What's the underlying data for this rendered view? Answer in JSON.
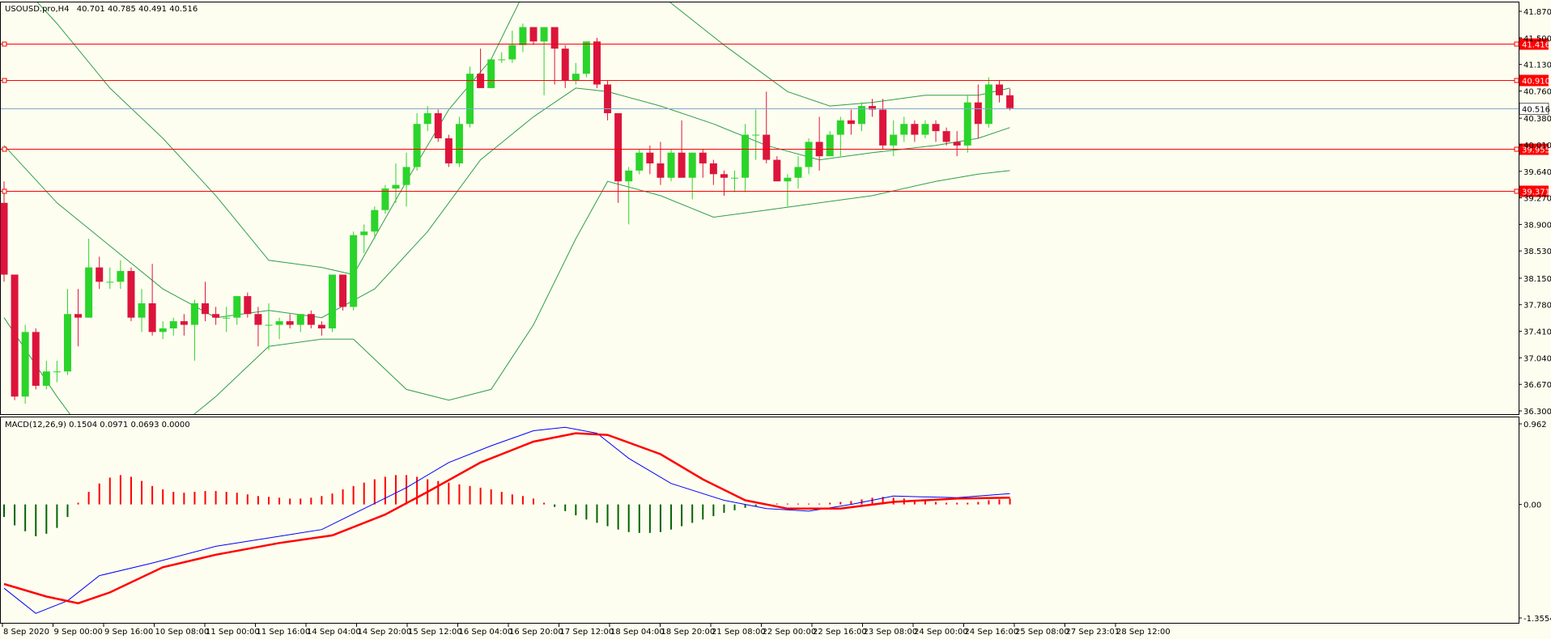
{
  "header": {
    "symbol": "USOUSD.pro,H4",
    "ohlc": "40.701 40.785 40.491 40.516"
  },
  "colors": {
    "background": "#fefef0",
    "bull": "#2bd42b",
    "bear": "#dc143c",
    "level": "#ff0000",
    "bid": "#7fa7c8",
    "bands": "#2e9e4a",
    "macd_line": "#0000ff",
    "signal_line": "#ff0000",
    "hist_pos": "#ff0000",
    "hist_neg": "#006400"
  },
  "price_axis": {
    "min": 36.3,
    "max": 41.87,
    "ticks": [
      "41.870",
      "41.500",
      "41.130",
      "40.760",
      "40.380",
      "40.010",
      "39.640",
      "39.270",
      "38.900",
      "38.530",
      "38.150",
      "37.780",
      "37.410",
      "37.040",
      "36.670",
      "36.300"
    ]
  },
  "levels": [
    {
      "label": "41.416",
      "value": 41.416
    },
    {
      "label": "40.910",
      "value": 40.91
    },
    {
      "label": "39.955",
      "value": 39.955
    },
    {
      "label": "39.371",
      "value": 39.371
    }
  ],
  "bid": {
    "label": "40.516",
    "value": 40.516
  },
  "macd": {
    "title": "MACD(12,26,9) 0.1504 0.0971 0.0693 0.0000",
    "axis_labels": [
      "0.962",
      "0.00",
      "-1.3554"
    ],
    "min": -1.3554,
    "max": 0.962
  },
  "time_labels": [
    "8 Sep 2020",
    "9 Sep 00:00",
    "9 Sep 16:00",
    "10 Sep 08:00",
    "11 Sep 00:00",
    "11 Sep 16:00",
    "14 Sep 04:00",
    "14 Sep 20:00",
    "15 Sep 12:00",
    "16 Sep 04:00",
    "16 Sep 20:00",
    "17 Sep 12:00",
    "18 Sep 04:00",
    "18 Sep 20:00",
    "21 Sep 08:00",
    "22 Sep 00:00",
    "22 Sep 16:00",
    "23 Sep 08:00",
    "24 Sep 00:00",
    "24 Sep 16:00",
    "25 Sep 08:00",
    "27 Sep 23:01",
    "28 Sep 12:00"
  ],
  "chart_data": {
    "type": "candlestick",
    "candles": [
      [
        39.2,
        39.5,
        38.1,
        38.2
      ],
      [
        38.2,
        38.2,
        36.45,
        36.5
      ],
      [
        36.5,
        37.5,
        36.4,
        37.4
      ],
      [
        37.4,
        37.45,
        36.6,
        36.65
      ],
      [
        36.65,
        37.0,
        36.6,
        36.85
      ],
      [
        36.85,
        37.0,
        36.7,
        36.85
      ],
      [
        36.85,
        38.0,
        36.8,
        37.65
      ],
      [
        37.65,
        38.0,
        37.2,
        37.6
      ],
      [
        37.6,
        38.7,
        37.6,
        38.3
      ],
      [
        38.3,
        38.45,
        38.0,
        38.1
      ],
      [
        38.1,
        38.3,
        38.0,
        38.1
      ],
      [
        38.1,
        38.4,
        38.0,
        38.25
      ],
      [
        38.25,
        38.3,
        37.55,
        37.6
      ],
      [
        37.6,
        38.0,
        37.4,
        37.8
      ],
      [
        37.8,
        38.35,
        37.35,
        37.4
      ],
      [
        37.4,
        37.55,
        37.3,
        37.45
      ],
      [
        37.45,
        37.6,
        37.35,
        37.55
      ],
      [
        37.55,
        37.65,
        37.35,
        37.5
      ],
      [
        37.5,
        37.85,
        37.0,
        37.8
      ],
      [
        37.8,
        38.1,
        37.55,
        37.65
      ],
      [
        37.65,
        37.75,
        37.5,
        37.6
      ],
      [
        37.6,
        37.75,
        37.4,
        37.6
      ],
      [
        37.6,
        37.9,
        37.5,
        37.9
      ],
      [
        37.9,
        37.95,
        37.6,
        37.65
      ],
      [
        37.65,
        37.75,
        37.2,
        37.5
      ],
      [
        37.5,
        37.8,
        37.15,
        37.5
      ],
      [
        37.5,
        37.6,
        37.3,
        37.55
      ],
      [
        37.55,
        37.65,
        37.45,
        37.5
      ],
      [
        37.5,
        37.65,
        37.4,
        37.65
      ],
      [
        37.65,
        37.7,
        37.45,
        37.5
      ],
      [
        37.5,
        37.55,
        37.35,
        37.45
      ],
      [
        37.45,
        38.2,
        37.4,
        38.2
      ],
      [
        38.2,
        38.2,
        37.7,
        37.75
      ],
      [
        37.75,
        38.8,
        37.7,
        38.75
      ],
      [
        38.75,
        38.9,
        38.5,
        38.8
      ],
      [
        38.8,
        39.15,
        38.7,
        39.1
      ],
      [
        39.1,
        39.45,
        39.05,
        39.4
      ],
      [
        39.4,
        39.75,
        39.2,
        39.45
      ],
      [
        39.45,
        39.9,
        39.15,
        39.7
      ],
      [
        39.7,
        40.45,
        39.65,
        40.3
      ],
      [
        40.3,
        40.55,
        40.2,
        40.45
      ],
      [
        40.45,
        40.5,
        40.05,
        40.1
      ],
      [
        40.1,
        40.15,
        39.7,
        39.75
      ],
      [
        39.75,
        40.4,
        39.7,
        40.3
      ],
      [
        40.3,
        41.1,
        40.25,
        41.0
      ],
      [
        41.0,
        41.35,
        40.8,
        40.8
      ],
      [
        40.8,
        41.2,
        40.8,
        41.2
      ],
      [
        41.2,
        41.3,
        41.15,
        41.2
      ],
      [
        41.2,
        41.6,
        41.15,
        41.4
      ],
      [
        41.4,
        41.7,
        41.3,
        41.65
      ],
      [
        41.65,
        41.65,
        41.4,
        41.45
      ],
      [
        41.45,
        41.6,
        40.7,
        41.65
      ],
      [
        41.65,
        41.65,
        40.85,
        41.35
      ],
      [
        41.35,
        41.4,
        40.8,
        40.9
      ],
      [
        40.9,
        41.15,
        40.85,
        41.0
      ],
      [
        41.0,
        41.45,
        40.95,
        41.45
      ],
      [
        41.45,
        41.5,
        40.8,
        40.85
      ],
      [
        40.85,
        40.9,
        40.35,
        40.45
      ],
      [
        40.45,
        40.45,
        39.2,
        39.5
      ],
      [
        39.5,
        39.7,
        38.9,
        39.65
      ],
      [
        39.65,
        39.95,
        39.6,
        39.9
      ],
      [
        39.9,
        40.0,
        39.6,
        39.75
      ],
      [
        39.75,
        40.05,
        39.45,
        39.55
      ],
      [
        39.55,
        39.95,
        39.5,
        39.9
      ],
      [
        39.9,
        40.35,
        39.6,
        39.55
      ],
      [
        39.55,
        39.9,
        39.25,
        39.9
      ],
      [
        39.9,
        39.95,
        39.55,
        39.75
      ],
      [
        39.75,
        39.8,
        39.45,
        39.6
      ],
      [
        39.6,
        39.65,
        39.3,
        39.55
      ],
      [
        39.55,
        39.65,
        39.35,
        39.55
      ],
      [
        39.55,
        40.3,
        39.35,
        40.15
      ],
      [
        40.15,
        40.5,
        39.8,
        40.15
      ],
      [
        40.15,
        40.75,
        39.75,
        39.8
      ],
      [
        39.8,
        39.85,
        39.5,
        39.5
      ],
      [
        39.5,
        39.6,
        39.15,
        39.55
      ],
      [
        39.55,
        39.85,
        39.4,
        39.7
      ],
      [
        39.7,
        40.1,
        39.6,
        40.05
      ],
      [
        40.05,
        40.4,
        39.65,
        39.85
      ],
      [
        39.85,
        40.2,
        39.85,
        40.15
      ],
      [
        40.15,
        40.4,
        39.85,
        40.35
      ],
      [
        40.35,
        40.5,
        40.15,
        40.3
      ],
      [
        40.3,
        40.6,
        40.2,
        40.55
      ],
      [
        40.55,
        40.65,
        40.4,
        40.5
      ],
      [
        40.5,
        40.65,
        39.95,
        40.0
      ],
      [
        40.0,
        40.35,
        39.85,
        40.15
      ],
      [
        40.15,
        40.4,
        40.05,
        40.3
      ],
      [
        40.3,
        40.35,
        40.05,
        40.15
      ],
      [
        40.15,
        40.35,
        40.1,
        40.3
      ],
      [
        40.3,
        40.35,
        40.05,
        40.2
      ],
      [
        40.2,
        40.25,
        40.0,
        40.05
      ],
      [
        40.05,
        40.2,
        39.85,
        40.0
      ],
      [
        40.0,
        40.7,
        39.9,
        40.6
      ],
      [
        40.6,
        40.85,
        40.1,
        40.3
      ],
      [
        40.3,
        40.95,
        40.25,
        40.85
      ],
      [
        40.85,
        40.9,
        40.6,
        40.7
      ],
      [
        40.7,
        40.79,
        40.49,
        40.52
      ]
    ],
    "bb_upper_marks": [
      [
        0,
        42.5
      ],
      [
        5,
        41.7
      ],
      [
        10,
        40.8
      ],
      [
        15,
        40.1
      ],
      [
        20,
        39.3
      ],
      [
        25,
        38.4
      ],
      [
        30,
        38.3
      ],
      [
        33,
        38.2
      ],
      [
        38,
        39.5
      ],
      [
        42,
        40.5
      ],
      [
        46,
        41.2
      ],
      [
        50,
        42.4
      ],
      [
        56,
        42.6
      ],
      [
        62,
        42.1
      ],
      [
        68,
        41.4
      ],
      [
        74,
        40.75
      ],
      [
        78,
        40.55
      ],
      [
        82,
        40.6
      ],
      [
        87,
        40.7
      ],
      [
        92,
        40.7
      ],
      [
        95,
        40.8
      ]
    ],
    "bb_mid_marks": [
      [
        0,
        40.0
      ],
      [
        5,
        39.2
      ],
      [
        10,
        38.6
      ],
      [
        15,
        38.0
      ],
      [
        20,
        37.6
      ],
      [
        25,
        37.7
      ],
      [
        30,
        37.6
      ],
      [
        35,
        38.0
      ],
      [
        40,
        38.8
      ],
      [
        45,
        39.8
      ],
      [
        50,
        40.4
      ],
      [
        54,
        40.8
      ],
      [
        57,
        40.75
      ],
      [
        62,
        40.55
      ],
      [
        67,
        40.3
      ],
      [
        72,
        40.0
      ],
      [
        77,
        39.8
      ],
      [
        82,
        39.9
      ],
      [
        88,
        40.0
      ],
      [
        92,
        40.1
      ],
      [
        95,
        40.25
      ]
    ],
    "bb_lower_marks": [
      [
        0,
        37.6
      ],
      [
        5,
        36.5
      ],
      [
        10,
        35.5
      ],
      [
        15,
        35.9
      ],
      [
        20,
        36.5
      ],
      [
        25,
        37.2
      ],
      [
        30,
        37.3
      ],
      [
        33,
        37.3
      ],
      [
        38,
        36.6
      ],
      [
        42,
        36.45
      ],
      [
        46,
        36.6
      ],
      [
        50,
        37.5
      ],
      [
        54,
        38.7
      ],
      [
        57,
        39.5
      ],
      [
        62,
        39.3
      ],
      [
        67,
        39.0
      ],
      [
        72,
        39.1
      ],
      [
        77,
        39.2
      ],
      [
        82,
        39.3
      ],
      [
        88,
        39.5
      ],
      [
        92,
        39.6
      ],
      [
        95,
        39.65
      ]
    ],
    "macd_line_marks": [
      [
        0,
        -1.0
      ],
      [
        3,
        -1.3
      ],
      [
        6,
        -1.15
      ],
      [
        9,
        -0.85
      ],
      [
        14,
        -0.7
      ],
      [
        20,
        -0.5
      ],
      [
        26,
        -0.38
      ],
      [
        30,
        -0.3
      ],
      [
        34,
        -0.05
      ],
      [
        38,
        0.2
      ],
      [
        42,
        0.5
      ],
      [
        46,
        0.7
      ],
      [
        50,
        0.88
      ],
      [
        53,
        0.92
      ],
      [
        56,
        0.85
      ],
      [
        59,
        0.55
      ],
      [
        63,
        0.25
      ],
      [
        68,
        0.05
      ],
      [
        72,
        -0.05
      ],
      [
        76,
        -0.08
      ],
      [
        80,
        0.0
      ],
      [
        84,
        0.1
      ],
      [
        90,
        0.08
      ],
      [
        95,
        0.13
      ]
    ],
    "signal_line_marks": [
      [
        0,
        -0.95
      ],
      [
        4,
        -1.1
      ],
      [
        7,
        -1.18
      ],
      [
        10,
        -1.05
      ],
      [
        15,
        -0.75
      ],
      [
        20,
        -0.6
      ],
      [
        26,
        -0.46
      ],
      [
        31,
        -0.37
      ],
      [
        36,
        -0.12
      ],
      [
        40,
        0.15
      ],
      [
        45,
        0.5
      ],
      [
        50,
        0.75
      ],
      [
        54,
        0.85
      ],
      [
        57,
        0.83
      ],
      [
        62,
        0.6
      ],
      [
        66,
        0.3
      ],
      [
        70,
        0.05
      ],
      [
        74,
        -0.05
      ],
      [
        79,
        -0.05
      ],
      [
        84,
        0.03
      ],
      [
        90,
        0.07
      ],
      [
        95,
        0.08
      ]
    ],
    "macd_hist": [
      -0.15,
      -0.25,
      -0.32,
      -0.38,
      -0.35,
      -0.28,
      -0.15,
      0.02,
      0.15,
      0.25,
      0.32,
      0.35,
      0.33,
      0.28,
      0.22,
      0.18,
      0.15,
      0.14,
      0.15,
      0.16,
      0.16,
      0.15,
      0.14,
      0.12,
      0.1,
      0.09,
      0.08,
      0.07,
      0.07,
      0.08,
      0.1,
      0.13,
      0.18,
      0.22,
      0.26,
      0.3,
      0.33,
      0.35,
      0.35,
      0.33,
      0.3,
      0.28,
      0.26,
      0.24,
      0.22,
      0.2,
      0.18,
      0.15,
      0.12,
      0.1,
      0.07,
      0.02,
      -0.03,
      -0.08,
      -0.13,
      -0.18,
      -0.22,
      -0.26,
      -0.3,
      -0.33,
      -0.34,
      -0.34,
      -0.33,
      -0.3,
      -0.26,
      -0.22,
      -0.18,
      -0.14,
      -0.1,
      -0.07,
      -0.04,
      -0.02,
      0.0,
      0.01,
      0.01,
      0.01,
      0.01,
      0.01,
      0.02,
      0.03,
      0.04,
      0.06,
      0.08,
      0.09,
      0.08,
      0.07,
      0.05,
      0.04,
      0.03,
      0.02,
      0.02,
      0.02,
      0.03,
      0.05,
      0.06,
      0.07
    ]
  }
}
